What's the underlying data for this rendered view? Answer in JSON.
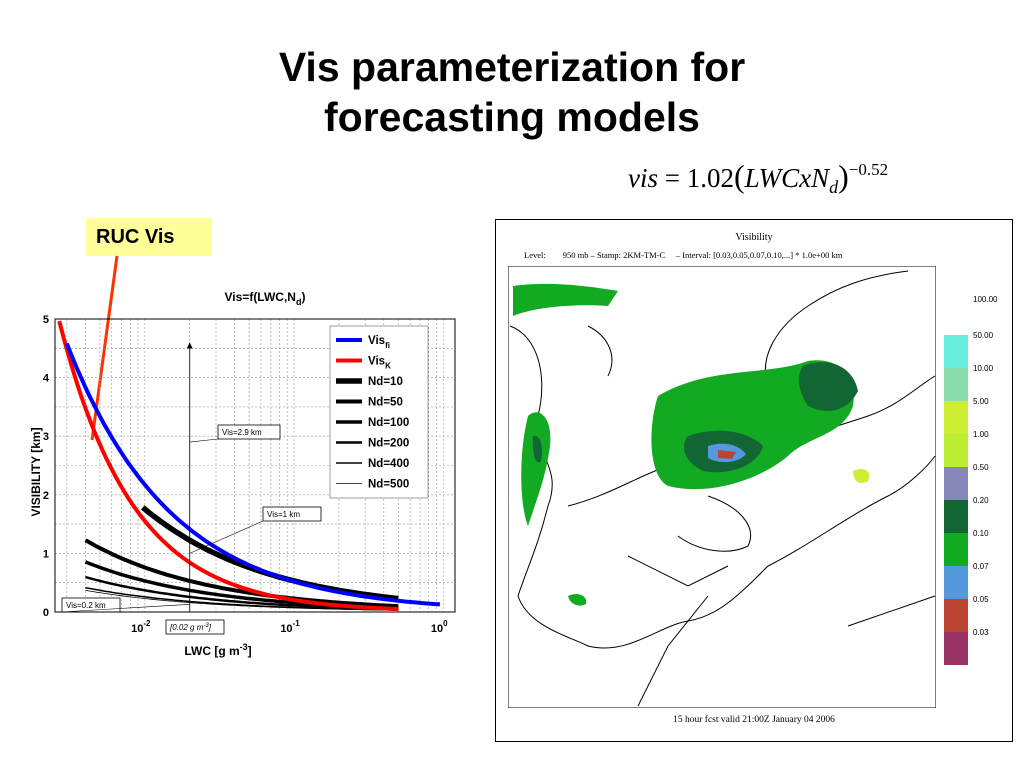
{
  "slide": {
    "title_line1": "Vis parameterization for",
    "title_line2": "forecasting models",
    "formula": {
      "lhs": "vis",
      "eq": " = 1.02",
      "open": "(",
      "body": "LWCxN",
      "sub": "d",
      "close": ")",
      "exponent": "−0.52"
    },
    "callout": "RUC Vis",
    "colors": {
      "callout_bg": "#ffff99",
      "callout_arrow": "#ff3300"
    }
  },
  "chart_data": {
    "type": "line",
    "title": "Vis=f(LWC,N",
    "title_sub": "d",
    "title_end": ")",
    "xlabel": "LWC [g m",
    "xlabel_sup": "-3",
    "xlabel_end": "]",
    "ylabel": "VISIBILITY [km]",
    "x_scale": "log",
    "xlim": [
      0.0025,
      1.2
    ],
    "ylim": [
      0,
      5
    ],
    "grid": true,
    "legend_position": "top-right",
    "y_ticks": [
      "0",
      "1",
      "2",
      "3",
      "4",
      "5"
    ],
    "x_ticks": [
      {
        "value": 0.01,
        "base": "10",
        "exp": "-2"
      },
      {
        "value": 0.1,
        "base": "10",
        "exp": "-1"
      },
      {
        "value": 1,
        "base": "10",
        "exp": "0"
      }
    ],
    "series": [
      {
        "name": "Vis",
        "name_sub": "fi",
        "color": "#0000ff",
        "width": 4,
        "formula": "gultepe",
        "x_start": 0.003,
        "x_end": 0.95
      },
      {
        "name": "Vis",
        "name_sub": "K",
        "color": "#ff0000",
        "width": 4,
        "formula": "kunkel",
        "x_start": 0.0025,
        "x_end": 0.5
      },
      {
        "name": "Nd=10",
        "color": "#000000",
        "width": 5.5,
        "nd": 10,
        "x_start": 0.0097,
        "x_end": 0.5
      },
      {
        "name": "Nd=50",
        "color": "#000000",
        "width": 4,
        "nd": 50,
        "x_start": 0.004,
        "x_end": 0.5
      },
      {
        "name": "Nd=100",
        "color": "#000000",
        "width": 3.5,
        "nd": 100,
        "x_start": 0.004,
        "x_end": 0.5
      },
      {
        "name": "Nd=200",
        "color": "#000000",
        "width": 2.5,
        "nd": 200,
        "x_start": 0.004,
        "x_end": 0.5
      },
      {
        "name": "Nd=400",
        "color": "#000000",
        "width": 1.5,
        "nd": 400,
        "x_start": 0.004,
        "x_end": 0.5
      },
      {
        "name": "Nd=500",
        "color": "#000000",
        "width": 0.8,
        "nd": 500,
        "x_start": 0.004,
        "x_end": 0.5
      }
    ],
    "annotations": [
      {
        "text": "Vis=2.9 km",
        "x": 0.02,
        "y": 2.9
      },
      {
        "text": "Vis=1 km",
        "x": 0.02,
        "y": 1
      },
      {
        "text": "Vis=0.2 km",
        "x": 0.02,
        "y": 0.2
      },
      {
        "text": "[0.02 g m",
        "text_sup": "-3",
        "text_end": "]",
        "x": 0.02,
        "y": 0
      }
    ]
  },
  "map": {
    "title": "Visibility",
    "level_line": "Level:        950 mb – Stamp: 2KM-TM-C     – Interval: [0.03,0.05,0.07,0.10,...] * 1.0e+00 km",
    "footer": "15 hour fcst valid 21:00Z January 04 2006",
    "legend_top": "100.00",
    "legend": [
      {
        "label": "50.00",
        "color": "#66eedd"
      },
      {
        "label": "10.00",
        "color": "#88ddaa"
      },
      {
        "label": "5.00",
        "color": "#ccee33"
      },
      {
        "label": "1.00",
        "color": "#bbee33"
      },
      {
        "label": "0.50",
        "color": "#8888bb"
      },
      {
        "label": "0.20",
        "color": "#116633"
      },
      {
        "label": "0.10",
        "color": "#11aa22"
      },
      {
        "label": "0.07",
        "color": "#5599dd"
      },
      {
        "label": "0.05",
        "color": "#bb4433"
      },
      {
        "label": "0.03",
        "color": "#993366"
      }
    ]
  }
}
